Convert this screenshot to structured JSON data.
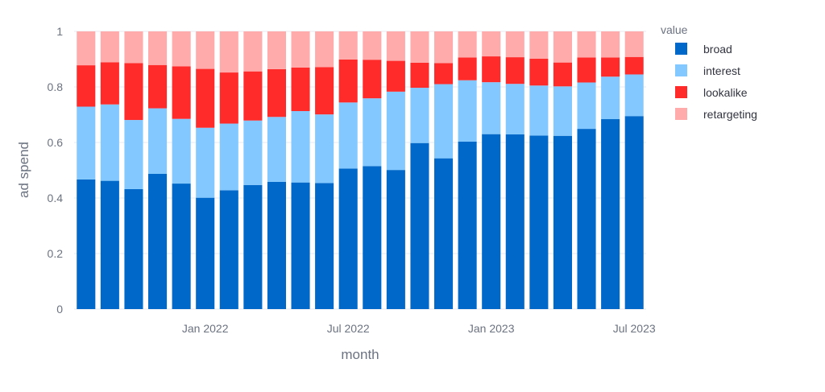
{
  "chart_data": {
    "type": "bar",
    "stacked": true,
    "xlabel": "month",
    "ylabel": "ad spend",
    "ylim": [
      0,
      1
    ],
    "y_ticks": [
      "0",
      "0.2",
      "0.4",
      "0.6",
      "0.8",
      "1"
    ],
    "y_tick_values": [
      0,
      0.2,
      0.4,
      0.6,
      0.8,
      1
    ],
    "x_ticks": [
      {
        "label": "Jan 2022",
        "category": "2022-01"
      },
      {
        "label": "Jul 2022",
        "category": "2022-07"
      },
      {
        "label": "Jan 2023",
        "category": "2023-01"
      },
      {
        "label": "Jul 2023",
        "category": "2023-07"
      }
    ],
    "categories": [
      "2021-08",
      "2021-09",
      "2021-10",
      "2021-11",
      "2021-12",
      "2022-01",
      "2022-02",
      "2022-03",
      "2022-04",
      "2022-05",
      "2022-06",
      "2022-07",
      "2022-08",
      "2022-09",
      "2022-10",
      "2022-11",
      "2022-12",
      "2023-01",
      "2023-02",
      "2023-03",
      "2023-04",
      "2023-05",
      "2023-06",
      "2023-07"
    ],
    "legend_title": "value",
    "legend_position": "right",
    "grid": true,
    "series": [
      {
        "name": "broad",
        "color": "#0068c9",
        "values": [
          0.467,
          0.462,
          0.432,
          0.487,
          0.452,
          0.401,
          0.428,
          0.447,
          0.458,
          0.456,
          0.454,
          0.506,
          0.515,
          0.501,
          0.598,
          0.543,
          0.603,
          0.63,
          0.629,
          0.625,
          0.624,
          0.649,
          0.684,
          0.695
        ]
      },
      {
        "name": "interest",
        "color": "#83c9ff",
        "values": [
          0.262,
          0.275,
          0.249,
          0.236,
          0.233,
          0.252,
          0.24,
          0.232,
          0.234,
          0.257,
          0.247,
          0.238,
          0.244,
          0.282,
          0.199,
          0.267,
          0.221,
          0.187,
          0.182,
          0.18,
          0.178,
          0.167,
          0.153,
          0.15
        ]
      },
      {
        "name": "lookalike",
        "color": "#ff2b2b",
        "values": [
          0.149,
          0.152,
          0.205,
          0.156,
          0.189,
          0.212,
          0.184,
          0.177,
          0.172,
          0.157,
          0.17,
          0.155,
          0.139,
          0.111,
          0.09,
          0.076,
          0.082,
          0.093,
          0.096,
          0.097,
          0.086,
          0.09,
          0.069,
          0.063
        ]
      },
      {
        "name": "retargeting",
        "color": "#ffabab",
        "values": [
          0.122,
          0.111,
          0.114,
          0.121,
          0.126,
          0.135,
          0.148,
          0.144,
          0.136,
          0.13,
          0.129,
          0.101,
          0.102,
          0.106,
          0.113,
          0.114,
          0.094,
          0.09,
          0.093,
          0.098,
          0.112,
          0.094,
          0.094,
          0.092
        ]
      }
    ]
  }
}
